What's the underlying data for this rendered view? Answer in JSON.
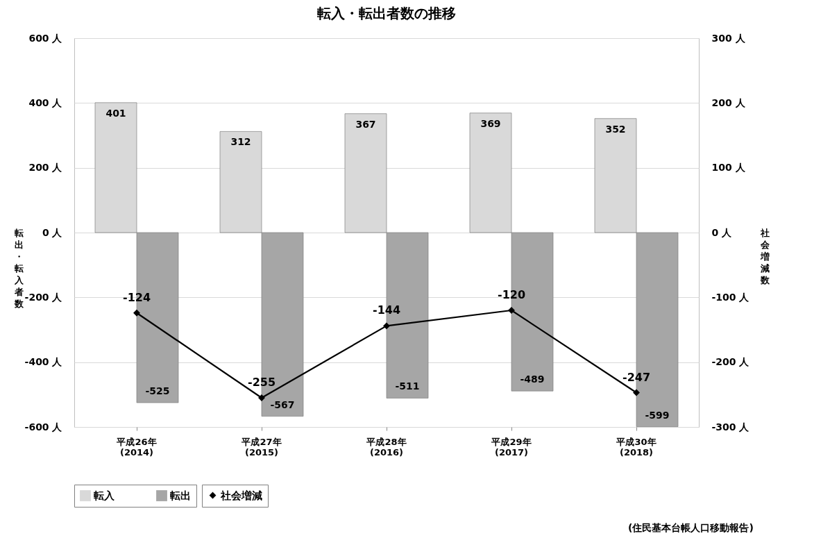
{
  "chart_data": {
    "type": "bar",
    "title": "転入・転出者数の推移",
    "ylabel": "転出・転入者数",
    "y2label": "社会増減数",
    "categories": [
      "平成26年\n(2014)",
      "平成27年\n(2015)",
      "平成28年\n(2016)",
      "平成29年\n(2017)",
      "平成30年\n(2018)"
    ],
    "series": [
      {
        "name": "転入",
        "color": "#d9d9d9",
        "values": [
          401,
          312,
          367,
          369,
          352
        ]
      },
      {
        "name": "転出",
        "color": "#a6a6a6",
        "values": [
          -525,
          -567,
          -511,
          -489,
          -599
        ]
      },
      {
        "name": "社会増減",
        "type": "line",
        "axis": "y2",
        "color": "#000000",
        "values": [
          -124,
          -255,
          -144,
          -120,
          -247
        ]
      }
    ],
    "ylim": [
      -600,
      600
    ],
    "yticks": [
      {
        "value": -600,
        "label": "-600 人"
      },
      {
        "value": -400,
        "label": "-400 人"
      },
      {
        "value": -200,
        "label": "-200 人"
      },
      {
        "value": 0,
        "label": "0 人"
      },
      {
        "value": 200,
        "label": "200 人"
      },
      {
        "value": 400,
        "label": "400 人"
      },
      {
        "value": 600,
        "label": "600 人"
      }
    ],
    "y2lim": [
      -300,
      300
    ],
    "y2ticks": [
      {
        "value": -300,
        "label": "-300 人"
      },
      {
        "value": -200,
        "label": "-200 人"
      },
      {
        "value": -100,
        "label": "-100 人"
      },
      {
        "value": 0,
        "label": "0 人"
      },
      {
        "value": 100,
        "label": "100 人"
      },
      {
        "value": 200,
        "label": "200 人"
      },
      {
        "value": 300,
        "label": "300 人"
      }
    ],
    "grid": "y",
    "legend": "bottom",
    "marker": "diamond",
    "line_style": "solid",
    "data_labels": true,
    "annotations": [
      "(住民基本台帳人口移動報告)"
    ]
  }
}
